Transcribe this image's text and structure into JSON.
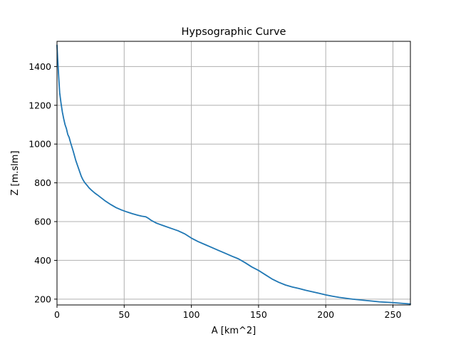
{
  "chart_data": {
    "type": "line",
    "title": "Hypsographic Curve",
    "xlabel": "A [km^2]",
    "ylabel": "Z [m.slm]",
    "xlim": [
      0,
      263
    ],
    "ylim": [
      170,
      1530
    ],
    "xticks": [
      0,
      50,
      100,
      150,
      200,
      250
    ],
    "yticks": [
      200,
      400,
      600,
      800,
      1000,
      1200,
      1400
    ],
    "grid": true,
    "legend": "none",
    "series": [
      {
        "color": "#1f77b4",
        "x": [
          0,
          0.5,
          1,
          1.5,
          2,
          3,
          4,
          5,
          6,
          7,
          8,
          9,
          10,
          12,
          14,
          16,
          18,
          19,
          20,
          21,
          22,
          24,
          26,
          28,
          30,
          33,
          36,
          40,
          44,
          48,
          52,
          56,
          60,
          63,
          66,
          68,
          70,
          74,
          80,
          85,
          90,
          95,
          100,
          105,
          110,
          115,
          120,
          125,
          130,
          135,
          140,
          145,
          150,
          155,
          160,
          165,
          170,
          175,
          180,
          185,
          190,
          195,
          200,
          205,
          210,
          220,
          230,
          240,
          250,
          263
        ],
        "y": [
          1510,
          1440,
          1380,
          1320,
          1265,
          1210,
          1165,
          1130,
          1100,
          1080,
          1050,
          1035,
          1010,
          965,
          915,
          875,
          835,
          820,
          808,
          798,
          790,
          773,
          760,
          748,
          738,
          722,
          706,
          688,
          672,
          660,
          650,
          641,
          633,
          628,
          625,
          617,
          607,
          592,
          577,
          565,
          553,
          537,
          515,
          497,
          482,
          467,
          452,
          437,
          422,
          408,
          388,
          366,
          348,
          326,
          304,
          287,
          273,
          263,
          255,
          246,
          238,
          230,
          222,
          215,
          209,
          200,
          193,
          186,
          182,
          175
        ]
      }
    ]
  }
}
